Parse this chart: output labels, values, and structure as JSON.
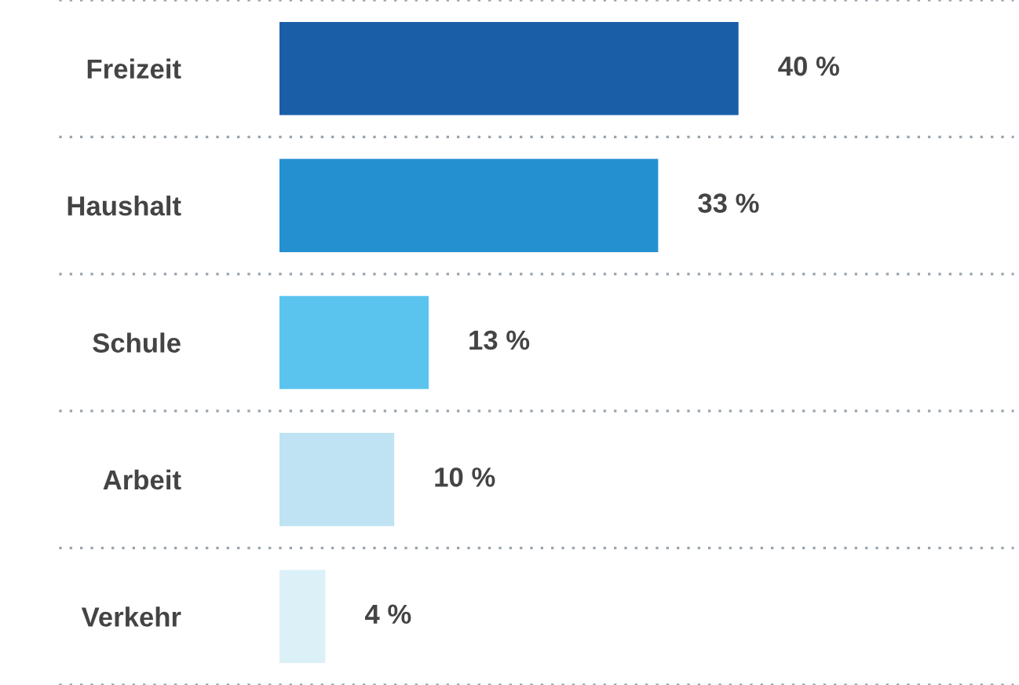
{
  "chart_data": {
    "type": "bar",
    "orientation": "horizontal",
    "grid": "y",
    "categories": [
      "Freizeit",
      "Haushalt",
      "Schule",
      "Arbeit",
      "Verkehr"
    ],
    "values": [
      40,
      33,
      13,
      10,
      4
    ],
    "value_labels": [
      "40 %",
      "33 %",
      "13 %",
      "10 %",
      "4 %"
    ],
    "colors": [
      "#1a5ea8",
      "#2590d0",
      "#5bc4ee",
      "#bfe3f2",
      "#dcf0f8"
    ]
  }
}
